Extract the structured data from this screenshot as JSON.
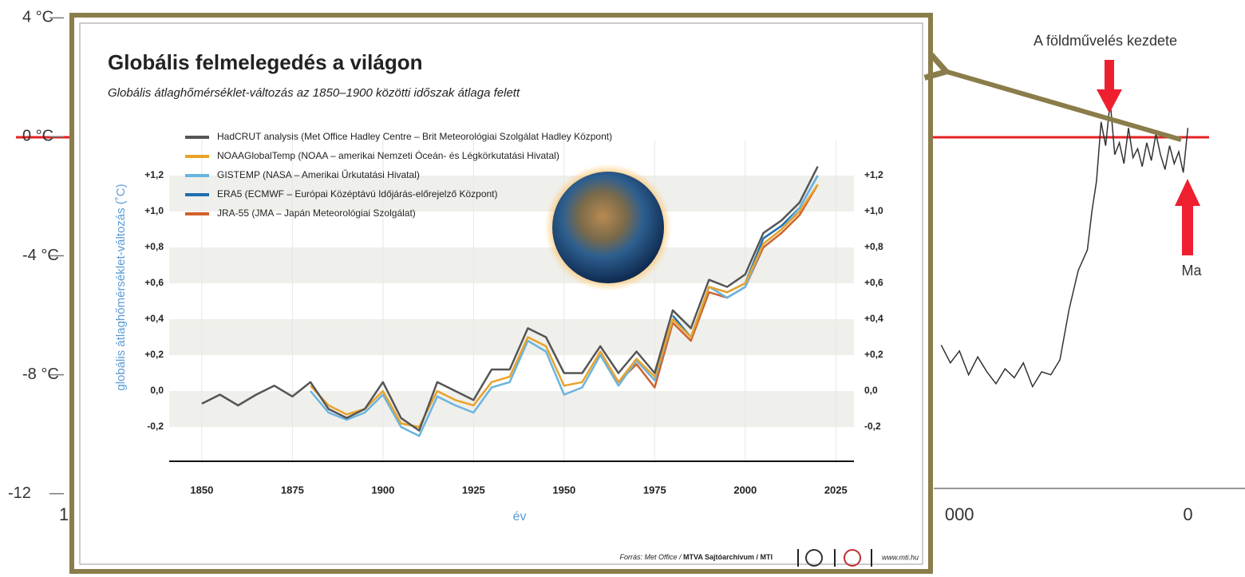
{
  "chart_data": [
    {
      "type": "line",
      "yticks": [
        {
          "value": 4,
          "label": "4 °C"
        },
        {
          "value": 0,
          "label": "0 °C"
        },
        {
          "value": -4,
          "label": "-4 °C"
        },
        {
          "value": -8,
          "label": "-8 °C"
        },
        -12
      ],
      "ylim": [
        -14.8,
        4.6
      ],
      "xlim": [
        -26000,
        1250
      ],
      "xticks": [
        {
          "value": -24600,
          "label": "1"
        },
        {
          "value": -5000,
          "label": "000"
        },
        0
      ],
      "x": [
        -5400,
        -5200,
        -5000,
        -4800,
        -4600,
        -4400,
        -4200,
        -4000,
        -3800,
        -3600,
        -3400,
        -3200,
        -3000,
        -2800,
        -2600,
        -2400,
        -2200,
        -2100,
        -2000,
        -1900,
        -1800,
        -1700,
        -1600,
        -1500,
        -1400,
        -1300,
        -1200,
        -1100,
        -1000,
        -900,
        -800,
        -700,
        -600,
        -500,
        -400,
        -300,
        -200,
        -100,
        0
      ],
      "values": [
        -7,
        -7.6,
        -7.2,
        -8.0,
        -7.4,
        -7.9,
        -8.3,
        -7.8,
        -8.1,
        -7.6,
        -8.4,
        -7.9,
        -8.0,
        -7.5,
        -5.8,
        -4.5,
        -3.8,
        -2.5,
        -1.5,
        0.5,
        -0.3,
        1.2,
        -0.6,
        -0.2,
        -0.9,
        0.3,
        -0.7,
        -0.4,
        -1.0,
        -0.2,
        -0.8,
        0.1,
        -0.6,
        -1.1,
        -0.3,
        -0.9,
        -0.5,
        -1.2,
        0.3
      ],
      "color": "#333333",
      "annotations": [
        "A földművelés kezdete",
        "Ma"
      ]
    },
    {
      "type": "line",
      "title": "Globális felmelegedés a világon",
      "subtitle": "Globális átlaghőmérséklet-változás az 1850–1900 közötti időszak átlaga felett",
      "y_label": "globális átlaghőmérséklet-változás (˚C)",
      "x_label": "év",
      "source": "Forrás: Met Office /",
      "source_bold": "MTVA Sajtóarchívum / MTI",
      "website": "www.mti.hu",
      "xlim": [
        1841,
        2030
      ],
      "xticks": [
        1850,
        1875,
        1900,
        1925,
        1950,
        1975,
        2000,
        2025
      ],
      "ylim": [
        -0.4,
        1.4
      ],
      "yticks": [
        {
          "value": -0.2,
          "label": "-0,2"
        },
        {
          "value": 0,
          "label": "0,0"
        },
        {
          "value": 0.2,
          "label": "+0,2"
        },
        {
          "value": 0.4,
          "label": "+0,4"
        },
        {
          "value": 0.6,
          "label": "+0,6"
        },
        {
          "value": 0.8,
          "label": "+0,8"
        },
        {
          "value": 1.0,
          "label": "+1,0"
        },
        {
          "value": 1.2,
          "label": "+1,2"
        }
      ],
      "grid": true,
      "x": [
        1850,
        1855,
        1860,
        1865,
        1870,
        1875,
        1880,
        1885,
        1890,
        1895,
        1900,
        1905,
        1910,
        1915,
        1920,
        1925,
        1930,
        1935,
        1940,
        1945,
        1950,
        1955,
        1960,
        1965,
        1970,
        1975,
        1980,
        1985,
        1990,
        1995,
        2000,
        2005,
        2010,
        2015,
        2020
      ],
      "series": [
        {
          "name": "HadCRUT analysis (Met Office Hadley Centre – Brit Meteorológiai Szolgálat Hadley Központ)",
          "color": "#555555",
          "values": [
            -0.07,
            -0.02,
            -0.08,
            -0.02,
            0.03,
            -0.03,
            0.05,
            -0.1,
            -0.15,
            -0.1,
            0.05,
            -0.15,
            -0.22,
            0.05,
            0.0,
            -0.05,
            0.12,
            0.12,
            0.35,
            0.3,
            0.1,
            0.1,
            0.25,
            0.1,
            0.22,
            0.1,
            0.45,
            0.35,
            0.62,
            0.58,
            0.65,
            0.88,
            0.95,
            1.05,
            1.25
          ]
        },
        {
          "name": "NOAAGlobalTemp (NOAA – amerikai Nemzeti Óceán- és Légkörkutatási Hivatal)",
          "color": "#e8a32a",
          "values": [
            null,
            null,
            null,
            null,
            null,
            null,
            0.03,
            -0.08,
            -0.13,
            -0.1,
            0.0,
            -0.18,
            -0.2,
            0.0,
            -0.05,
            -0.08,
            0.05,
            0.08,
            0.3,
            0.25,
            0.03,
            0.05,
            0.22,
            0.05,
            0.18,
            0.08,
            0.4,
            0.3,
            0.58,
            0.55,
            0.6,
            0.82,
            0.9,
            1.0,
            1.15
          ]
        },
        {
          "name": "GISTEMP (NASA – Amerikai Űrkutatási Hivatal)",
          "color": "#6ab4e0",
          "values": [
            null,
            null,
            null,
            null,
            null,
            null,
            0.0,
            -0.12,
            -0.16,
            -0.12,
            -0.02,
            -0.2,
            -0.25,
            -0.03,
            -0.08,
            -0.12,
            0.02,
            0.05,
            0.28,
            0.22,
            -0.02,
            0.02,
            0.2,
            0.03,
            0.17,
            0.06,
            0.4,
            0.3,
            0.58,
            0.52,
            0.58,
            0.82,
            0.9,
            1.02,
            1.2
          ]
        },
        {
          "name": "ERA5 (ECMWF – Európai Középtávú Időjárás-előrejelző Központ)",
          "color": "#1f6fb0",
          "values": [
            null,
            null,
            null,
            null,
            null,
            null,
            null,
            null,
            null,
            null,
            null,
            null,
            null,
            null,
            null,
            null,
            null,
            null,
            null,
            null,
            null,
            null,
            null,
            null,
            null,
            null,
            0.42,
            0.3,
            0.58,
            0.55,
            0.6,
            0.85,
            0.92,
            1.02,
            1.2
          ]
        },
        {
          "name": "JRA-55 (JMA – Japán Meteorológiai Szolgálat)",
          "color": "#d0622c",
          "values": [
            null,
            null,
            null,
            null,
            null,
            null,
            null,
            null,
            null,
            null,
            null,
            null,
            null,
            null,
            null,
            null,
            null,
            null,
            null,
            null,
            null,
            null,
            0.22,
            0.05,
            0.15,
            0.02,
            0.38,
            0.28,
            0.55,
            0.52,
            0.58,
            0.8,
            0.88,
            0.98,
            1.15
          ]
        }
      ]
    }
  ]
}
